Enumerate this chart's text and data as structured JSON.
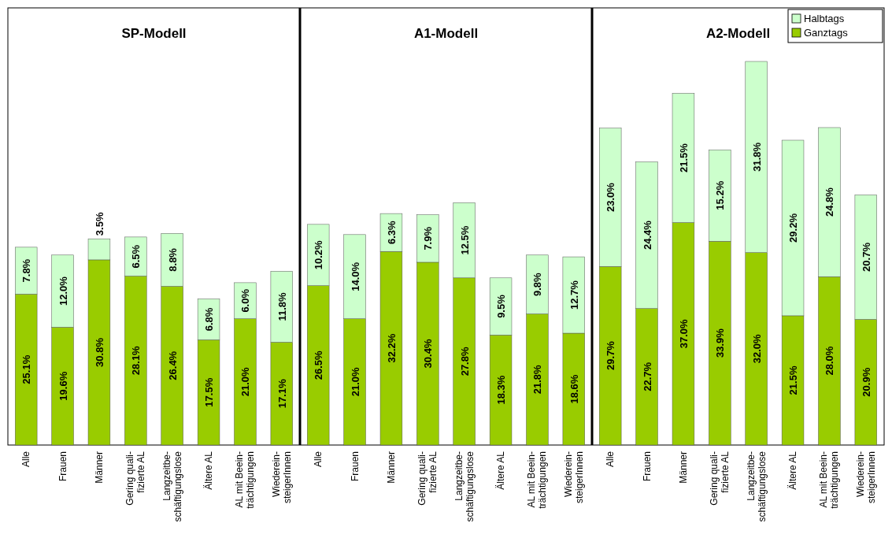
{
  "chart_data": {
    "type": "bar",
    "stacked": true,
    "legend": "top right",
    "categories": [
      "Alle",
      "Frauen",
      "Männer",
      "Gering quali-\nfizierte AL",
      "Langzeitbe-\nschäftigungslose",
      "Ältere AL",
      "AL mit Beein-\nträchtigungen",
      "Wiederein-\nsteigerInnen",
      "Alle",
      "Frauen",
      "Männer",
      "Gering quali-\nfizierte AL",
      "Langzeitbe-\nschäftigungslose",
      "Ältere AL",
      "AL mit Beein-\nträchtigungen",
      "Wiederein-\nsteigerInnen",
      "Alle",
      "Frauen",
      "Männer",
      "Gering quali-\nfizierte AL",
      "Langzeitbe-\nschäftigungslose",
      "Ältere AL",
      "AL mit Beein-\nträchtigungen",
      "Wiederein-\nsteigerInnen"
    ],
    "series": [
      {
        "name": "Ganztags",
        "color": "#99cc00",
        "values": [
          25.1,
          19.6,
          30.8,
          28.1,
          26.4,
          17.5,
          21.0,
          17.1,
          26.5,
          21.0,
          32.2,
          30.4,
          27.8,
          18.3,
          21.8,
          18.6,
          29.7,
          22.7,
          37.0,
          33.9,
          32.0,
          21.5,
          28.0,
          20.9
        ],
        "value_labels": [
          "25.1%",
          "19.6%",
          "30.8%",
          "28.1%",
          "26.4%",
          "17.5%",
          "21.0%",
          "17.1%",
          "26.5%",
          "21.0%",
          "32.2%",
          "30.4%",
          "27.8%",
          "18.3%",
          "21.8%",
          "18.6%",
          "29.7%",
          "22.7%",
          "37.0%",
          "33.9%",
          "32.0%",
          "21.5%",
          "28.0%",
          "20.9%"
        ]
      },
      {
        "name": "Halbtags",
        "color": "#ccffcc",
        "values": [
          7.8,
          12.0,
          3.5,
          6.5,
          8.8,
          6.8,
          6.0,
          11.8,
          10.2,
          14.0,
          6.3,
          7.9,
          12.5,
          9.5,
          9.8,
          12.7,
          23.0,
          24.4,
          21.5,
          15.2,
          31.8,
          29.2,
          24.8,
          20.7
        ],
        "value_labels": [
          "7.8%",
          "12.0%",
          "3.5%",
          "6.5%",
          "8.8%",
          "6.8%",
          "6.0%",
          "11.8%",
          "10.2%",
          "14.0%",
          "6.3%",
          "7.9%",
          "12.5%",
          "9.5%",
          "9.8%",
          "12.7%",
          "23.0%",
          "24.4%",
          "21.5%",
          "15.2%",
          "31.8%",
          "29.2%",
          "24.8%",
          "20.7%"
        ]
      }
    ],
    "annotations": [
      "SP-Modell",
      "A1-Modell",
      "A2-Modell"
    ]
  }
}
